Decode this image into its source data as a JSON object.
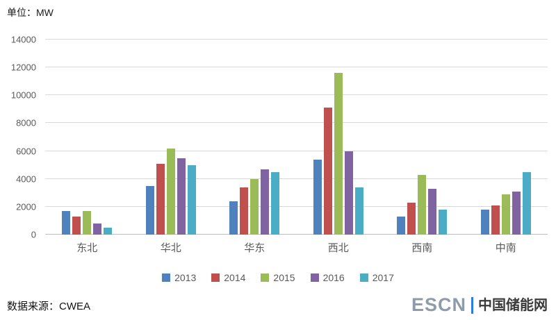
{
  "unit_label": "单位：MW",
  "source_label": "数据来源：CWEA",
  "logo": {
    "escn": "ESCN",
    "cn_name": "中国储能网"
  },
  "chart_data": {
    "type": "bar",
    "title": "",
    "xlabel": "",
    "ylabel": "单位：MW",
    "categories": [
      "东北",
      "华北",
      "华东",
      "西北",
      "西南",
      "中南"
    ],
    "series": [
      {
        "name": "2013",
        "color": "#4f81bd",
        "values": [
          1700,
          3500,
          2400,
          5400,
          1300,
          1800
        ]
      },
      {
        "name": "2014",
        "color": "#c0504d",
        "values": [
          1300,
          5100,
          3400,
          9100,
          2300,
          2100
        ]
      },
      {
        "name": "2015",
        "color": "#9bbb59",
        "values": [
          1700,
          6200,
          4000,
          11600,
          4300,
          2900
        ]
      },
      {
        "name": "2016",
        "color": "#8064a2",
        "values": [
          800,
          5500,
          4700,
          6000,
          3300,
          3100
        ]
      },
      {
        "name": "2017",
        "color": "#4bacc6",
        "values": [
          500,
          5000,
          4500,
          3400,
          1800,
          4500
        ]
      }
    ],
    "ylim": [
      0,
      14000
    ],
    "ytick_step": 2000,
    "grid": true,
    "legend_position": "bottom"
  }
}
